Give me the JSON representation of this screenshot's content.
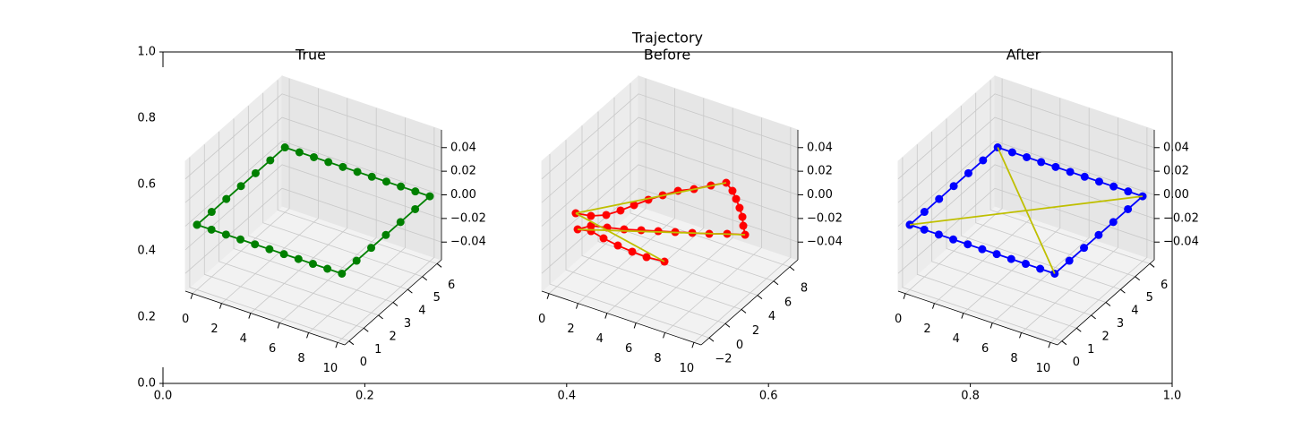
{
  "chart_data": [
    {
      "type": "axes",
      "title": "Trajectory",
      "xlim": [
        0,
        1
      ],
      "ylim": [
        0,
        1
      ],
      "xticks": [
        {
          "value": 0,
          "label": "0.0"
        },
        {
          "value": 0.2,
          "label": "0.2"
        },
        {
          "value": 0.4,
          "label": "0.4"
        },
        {
          "value": 0.6,
          "label": "0.6"
        },
        {
          "value": 0.8,
          "label": "0.8"
        },
        {
          "value": 1,
          "label": "1.0"
        }
      ],
      "yticks": [
        {
          "value": 0,
          "label": "0.0"
        },
        {
          "value": 0.2,
          "label": "0.2"
        },
        {
          "value": 0.4,
          "label": "0.4"
        },
        {
          "value": 0.6,
          "label": "0.6"
        },
        {
          "value": 0.8,
          "label": "0.8"
        },
        {
          "value": 1,
          "label": "1.0"
        }
      ]
    },
    {
      "type": "line3d",
      "title": "True",
      "xlim": [
        -0.5,
        10.5
      ],
      "ylim": [
        -0.3,
        6.3
      ],
      "zlim": [
        -0.055,
        0.055
      ],
      "xticks": [
        0,
        2,
        4,
        6,
        8,
        10
      ],
      "yticks": [
        0,
        1,
        2,
        3,
        4,
        5,
        6
      ],
      "zticks": [
        {
          "value": -0.04,
          "label": "−0.04"
        },
        {
          "value": -0.02,
          "label": "−0.02"
        },
        {
          "value": 0,
          "label": "0.00"
        },
        0.02,
        0.04
      ],
      "series": [
        {
          "color": "#008000",
          "marker": "o",
          "x": [
            0,
            0,
            0,
            0,
            0,
            0,
            0,
            1,
            2,
            3,
            4,
            5,
            6,
            7,
            8,
            9,
            10,
            10,
            10,
            10,
            10,
            10,
            10,
            9,
            8,
            7,
            6,
            5,
            4,
            3,
            2,
            1,
            0
          ],
          "y": [
            0,
            1,
            2,
            3,
            4,
            5,
            6,
            6,
            6,
            6,
            6,
            6,
            6,
            6,
            6,
            6,
            6,
            5,
            4,
            3,
            2,
            1,
            0,
            0,
            0,
            0,
            0,
            0,
            0,
            0,
            0,
            0,
            0
          ],
          "z": [
            0,
            0,
            0,
            0,
            0,
            0,
            0,
            0,
            0,
            0,
            0,
            0,
            0,
            0,
            0,
            0,
            0,
            0,
            0,
            0,
            0,
            0,
            0,
            0,
            0,
            0,
            0,
            0,
            0,
            0,
            0,
            0,
            0
          ]
        }
      ]
    },
    {
      "type": "line3d",
      "title": "Before",
      "xlim": [
        -0.5,
        10.5
      ],
      "ylim": [
        -3,
        9
      ],
      "zlim": [
        -0.055,
        0.055
      ],
      "xticks": [
        0,
        2,
        4,
        6,
        8,
        10
      ],
      "yticks": [
        {
          "value": -2,
          "label": "−2"
        },
        0,
        2,
        4,
        6,
        8
      ],
      "zticks": [
        {
          "value": -0.04,
          "label": "−0.04"
        },
        {
          "value": -0.02,
          "label": "−0.02"
        },
        {
          "value": 0,
          "label": "0.00"
        },
        0.02,
        0.04
      ],
      "series": [
        {
          "color": "#ff0000",
          "marker": "o",
          "x": [
            0.46,
            1.37,
            2.08,
            2.54,
            2.91,
            3.32,
            3.78,
            4.29,
            4.99,
            5.63,
            6.24,
            7.01,
            7.65,
            8.33,
            8.98,
            9.53,
            10.13,
            9.18,
            8.29,
            7.39,
            6.49,
            5.59,
            4.69,
            3.79,
            2.84,
            1.93,
            1.47,
            2.24,
            3.27,
            4.39,
            5.46,
            6.48,
            7.63
          ],
          "y": [
            -0.51,
            -0.26,
            0.36,
            1.31,
            2.32,
            3.36,
            4.31,
            5.29,
            6.02,
            6.97,
            7.77,
            7.16,
            6.46,
            5.67,
            4.85,
            3.97,
            3.12,
            2.6,
            1.98,
            1.49,
            0.99,
            0.5,
            0.01,
            -0.49,
            -0.89,
            -1.26,
            -2.09,
            -1.81,
            -2.11,
            -2.35,
            -2.49,
            -2.55,
            -2.39
          ],
          "z": [
            0,
            0,
            0,
            0,
            0,
            0,
            0,
            0,
            0,
            0,
            0,
            0,
            0,
            0,
            0,
            0,
            0,
            0,
            0,
            0,
            0,
            0,
            0,
            0,
            0,
            0,
            0,
            0,
            0,
            0,
            0,
            0,
            0
          ]
        },
        {
          "color": "#bfbf00",
          "x": [
            0.46,
            6.24
          ],
          "y": [
            -0.51,
            7.77
          ],
          "z": [
            0,
            0
          ]
        },
        {
          "color": "#bfbf00",
          "x": [
            0.46,
            7.63
          ],
          "y": [
            -0.51,
            -2.39
          ],
          "z": [
            0,
            0
          ]
        },
        {
          "color": "#bfbf00",
          "x": [
            1.47,
            10.13
          ],
          "y": [
            -2.09,
            3.12
          ],
          "z": [
            0,
            0
          ]
        }
      ]
    },
    {
      "type": "line3d",
      "title": "After",
      "xlim": [
        -0.5,
        10.5
      ],
      "ylim": [
        -0.3,
        6.3
      ],
      "zlim": [
        -0.055,
        0.055
      ],
      "xticks": [
        0,
        2,
        4,
        6,
        8,
        10
      ],
      "yticks": [
        0,
        1,
        2,
        3,
        4,
        5,
        6
      ],
      "zticks": [
        {
          "value": -0.04,
          "label": "−0.04"
        },
        {
          "value": -0.02,
          "label": "−0.02"
        },
        {
          "value": 0,
          "label": "0.00"
        },
        0.02,
        0.04
      ],
      "series": [
        {
          "color": "#0000ff",
          "marker": "o",
          "x": [
            0,
            0,
            0,
            0,
            0,
            0,
            0,
            1,
            2,
            3,
            4,
            5,
            6,
            7,
            8,
            9,
            10,
            10,
            10,
            10,
            10,
            10,
            10,
            9,
            8,
            7,
            6,
            5,
            4,
            3,
            2,
            1,
            0
          ],
          "y": [
            0,
            1,
            2,
            3,
            4,
            5,
            6,
            6,
            6,
            6,
            6,
            6,
            6,
            6,
            6,
            6,
            6,
            5,
            4,
            3,
            2,
            1,
            0,
            0,
            0,
            0,
            0,
            0,
            0,
            0,
            0,
            0,
            0
          ],
          "z": [
            0,
            0,
            0,
            0,
            0,
            0,
            0,
            0,
            0,
            0,
            0,
            0,
            0,
            0,
            0,
            0,
            0,
            0,
            0,
            0,
            0,
            0,
            0,
            0,
            0,
            0,
            0,
            0,
            0,
            0,
            0,
            0,
            0
          ]
        },
        {
          "color": "#bfbf00",
          "x": [
            0,
            10
          ],
          "y": [
            6,
            0
          ],
          "z": [
            0,
            0
          ]
        },
        {
          "color": "#bfbf00",
          "x": [
            0,
            10
          ],
          "y": [
            0,
            6
          ],
          "z": [
            0,
            0
          ]
        }
      ]
    }
  ]
}
